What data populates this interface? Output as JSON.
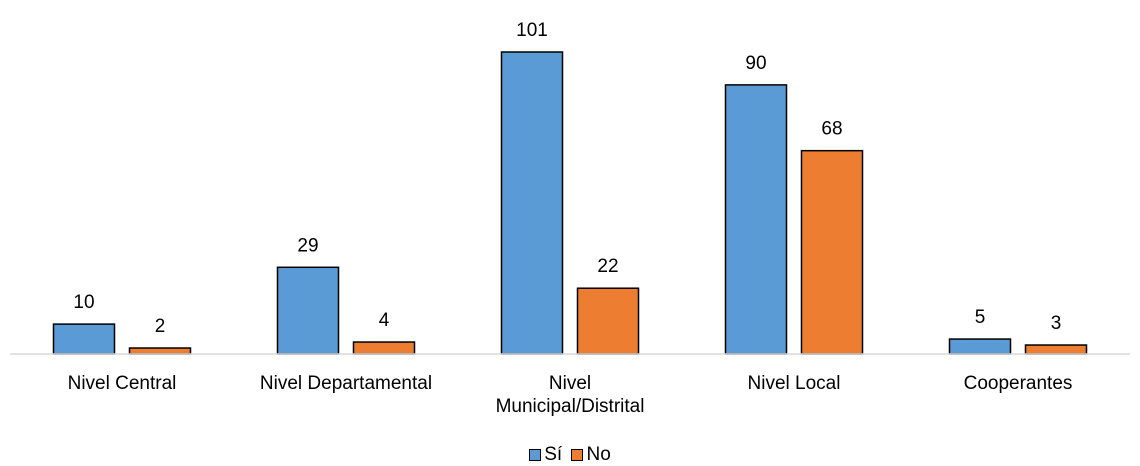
{
  "chart_data": {
    "type": "bar",
    "categories": [
      "Nivel Central",
      "Nivel Departamental",
      "Nivel Municipal/Distrital",
      "Nivel Local",
      "Cooperantes"
    ],
    "series": [
      {
        "name": "Sí",
        "values": [
          10,
          29,
          101,
          90,
          5
        ],
        "color": "#5b9bd5"
      },
      {
        "name": "No",
        "values": [
          2,
          4,
          22,
          68,
          3
        ],
        "color": "#ed7d31"
      }
    ],
    "ylim": [
      0,
      101
    ],
    "grid": false,
    "legend_position": "bottom",
    "data_labels": true
  }
}
